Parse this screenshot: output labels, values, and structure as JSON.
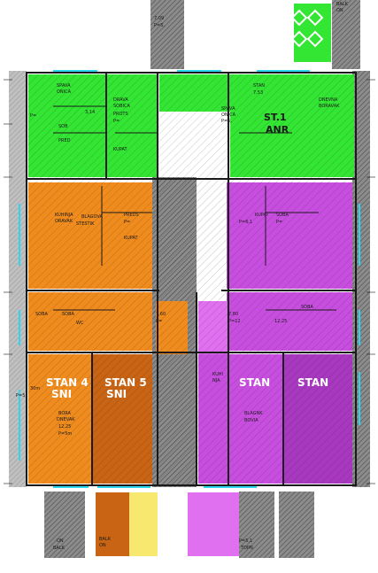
{
  "colors": {
    "green": "#33e633",
    "orange": "#f08c1e",
    "dark_orange": "#c86414",
    "purple": "#c84ee0",
    "magenta": "#e070f0",
    "yellow": "#f8e870",
    "gray_hatch": "#9a9a9a",
    "wall": "#1a1a1a",
    "window": "#2ad6f0"
  },
  "labels": {
    "top_center_a": "7,09",
    "top_center_b": "P=5,",
    "top_right_a": "BALK",
    "top_right_b": "ON",
    "g_left_a": "SPAVA",
    "g_left_b": "ONICA",
    "g_left_c": "3,14",
    "g_left_d": "P=",
    "g_left_e": "SOB",
    "g_left_f": "PRED",
    "g_mid_a": "DRAVA",
    "g_mid_b": "SOBICA",
    "g_mid_c": "PROTS",
    "g_mid_d": "P=",
    "g_mid_e": "KUPAT",
    "g_right_a": "STAN",
    "g_right_b": "7,53",
    "g_right_c": "SPAVA",
    "g_right_d": "ONICA",
    "g_right_e": "P=5,",
    "g_right_f": "DNEVNA",
    "g_right_g": "BORAVAK",
    "g_right_big1": "ST.1",
    "g_right_big2": "ANR",
    "o_left_a": "KUHINJA",
    "o_left_b": "ORAVAK",
    "o_left_c": "BLAGOVA",
    "o_left_d": "STESTIK",
    "o_left_e": "PREDS",
    "o_left_f": "P=",
    "o_left_g": "KUPAT",
    "p_right_a": "KUPAT",
    "p_right_b": "P=6,1",
    "p_right_c": "SOBA",
    "p_right_d": "P=",
    "p_right_e": "7,80",
    "p_right_f": "P=12",
    "p_right_g": "SOBA",
    "p_right_h": "12,25",
    "o_low_a": "SOBA",
    "o_low_b": "SOBA",
    "o_low_c": "WC",
    "o_low_d": "7,60",
    "o_low_e": "P=",
    "o_bot_big1": "STAN 4",
    "o_bot_big2": "SNI",
    "o_bot_big3": "STAN 5",
    "o_bot_big4": "SNI",
    "o_bot_a": "30m",
    "o_bot_b": "P=5,",
    "o_bot_c": "BORA",
    "o_bot_d": "DNEVAK",
    "o_bot_e": "12,25",
    "o_bot_f": "P=5m",
    "p_bot_big1": "STAN",
    "p_bot_big2": "STAN",
    "p_bot_a": "KUHI",
    "p_bot_b": "NJA",
    "p_bot_c": "BLAGNK",
    "p_bot_d": "BOVIA",
    "bottom_left_a": "ON",
    "bottom_left_b": "BALK",
    "bottom_mid_a": "BALK",
    "bottom_mid_b": "ON",
    "bottom_right_a": "P=5,1",
    "bottom_right_b": "TOPN"
  }
}
